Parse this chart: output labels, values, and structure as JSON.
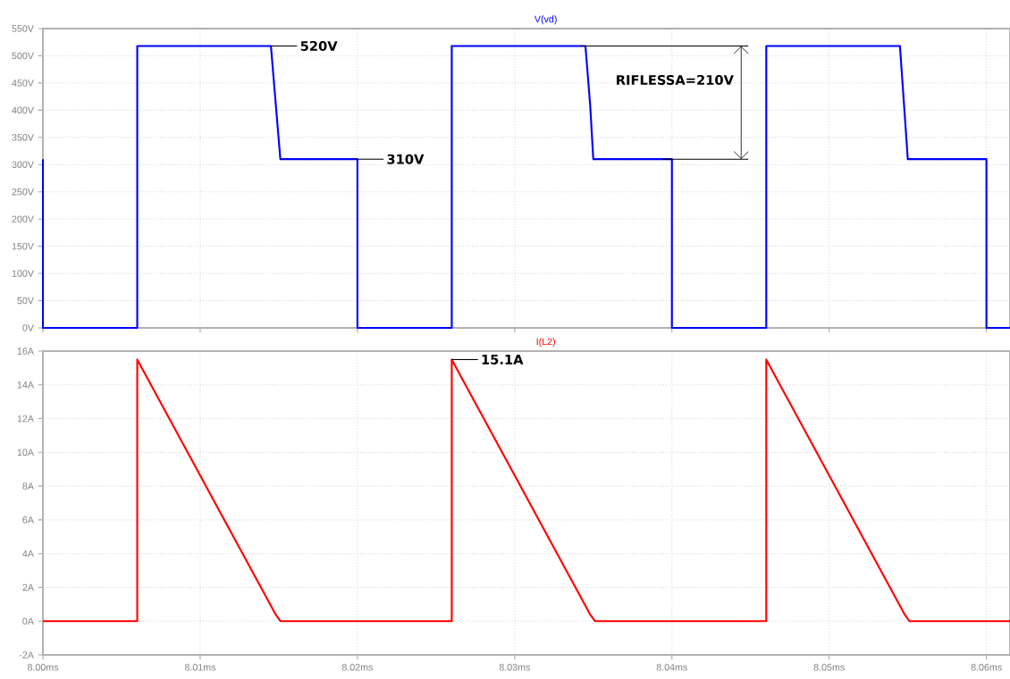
{
  "chart_data": [
    {
      "type": "line",
      "xlim": [
        8.0,
        8.0615
      ],
      "ylim": [
        0,
        550
      ],
      "grid": true,
      "line_style": "solid",
      "tick_labels": "y",
      "xticks": [
        {
          "value": 8.0,
          "label": null
        },
        {
          "value": 8.01,
          "label": null
        },
        {
          "value": 8.02,
          "label": null
        },
        {
          "value": 8.03,
          "label": null
        },
        {
          "value": 8.04,
          "label": null
        },
        {
          "value": 8.05,
          "label": null
        },
        {
          "value": 8.06,
          "label": null
        }
      ],
      "yticks": [
        {
          "value": 0,
          "label": "0V"
        },
        {
          "value": 50,
          "label": "50V"
        },
        {
          "value": 100,
          "label": "100V"
        },
        {
          "value": 150,
          "label": "150V"
        },
        {
          "value": 200,
          "label": "200V"
        },
        {
          "value": 250,
          "label": "250V"
        },
        {
          "value": 300,
          "label": "300V"
        },
        {
          "value": 350,
          "label": "350V"
        },
        {
          "value": 400,
          "label": "400V"
        },
        {
          "value": 450,
          "label": "450V"
        },
        {
          "value": 500,
          "label": "500V"
        },
        {
          "value": 550,
          "label": "550V"
        }
      ],
      "series": [
        {
          "name": "V(vd)",
          "color": "#0000ff",
          "x": [
            8.0,
            8.0,
            8.006,
            8.006,
            8.01,
            8.0145,
            8.0151,
            8.02,
            8.02,
            8.026,
            8.026,
            8.0345,
            8.0348,
            8.035,
            8.04,
            8.04,
            8.046,
            8.046,
            8.0545,
            8.055,
            8.06,
            8.06,
            8.0615
          ],
          "values": [
            310,
            0,
            0,
            518,
            518,
            518,
            310,
            310,
            0,
            0,
            518,
            518,
            410,
            310,
            310,
            0,
            0,
            518,
            518,
            310,
            310,
            0,
            0
          ]
        }
      ],
      "annotations": [
        {
          "text": "520V",
          "x": 8.0145,
          "y": 518
        },
        {
          "text": "310V",
          "x": 8.02,
          "y": 310
        },
        "RIFLESSA=210V"
      ]
    },
    {
      "type": "line",
      "xlim": [
        8.0,
        8.0615
      ],
      "ylim": [
        -2,
        16
      ],
      "grid": true,
      "line_style": "solid",
      "xticks": [
        {
          "value": 8.0,
          "label": "8.00ms"
        },
        {
          "value": 8.01,
          "label": "8.01ms"
        },
        {
          "value": 8.02,
          "label": "8.02ms"
        },
        {
          "value": 8.03,
          "label": "8.03ms"
        },
        {
          "value": 8.04,
          "label": "8.04ms"
        },
        {
          "value": 8.05,
          "label": "8.05ms"
        },
        {
          "value": 8.06,
          "label": "8.06ms"
        }
      ],
      "yticks": [
        {
          "value": -2,
          "label": "-2A"
        },
        {
          "value": 0,
          "label": "0A"
        },
        {
          "value": 2,
          "label": "2A"
        },
        {
          "value": 4,
          "label": "4A"
        },
        {
          "value": 6,
          "label": "6A"
        },
        {
          "value": 8,
          "label": "8A"
        },
        {
          "value": 10,
          "label": "10A"
        },
        {
          "value": 12,
          "label": "12A"
        },
        {
          "value": 14,
          "label": "14A"
        },
        {
          "value": 16,
          "label": "16A"
        }
      ],
      "series": [
        {
          "name": "I(L2)",
          "color": "#ff0000",
          "x": [
            8.0,
            8.006,
            8.006,
            8.0148,
            8.0151,
            8.026,
            8.026,
            8.0348,
            8.0351,
            8.046,
            8.046,
            8.0548,
            8.0551,
            8.0615
          ],
          "values": [
            0,
            0,
            15.5,
            0.4,
            0,
            0,
            15.5,
            0.4,
            0,
            0,
            15.5,
            0.4,
            0,
            0
          ]
        }
      ],
      "annotations": [
        {
          "text": "15.1A",
          "x": 8.026,
          "y": 15.5
        }
      ]
    }
  ]
}
